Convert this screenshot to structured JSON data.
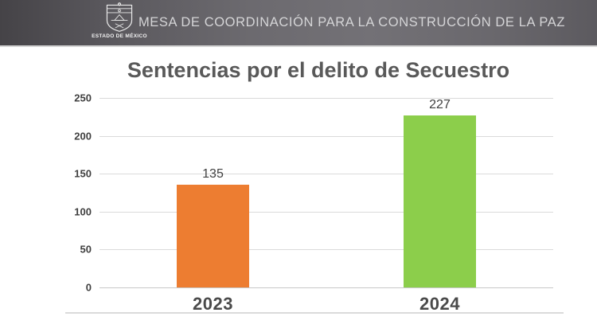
{
  "header": {
    "title": "MESA DE COORDINACIÓN PARA LA CONSTRUCCIÓN DE LA PAZ",
    "logo": {
      "icon": "estado-de-mexico-coat-of-arms",
      "caption": "ESTADO DE MÉXICO"
    }
  },
  "chart_data": {
    "type": "bar",
    "title": "Sentencias por el delito de Secuestro",
    "categories": [
      "2023",
      "2024"
    ],
    "values": [
      135,
      227
    ],
    "bar_colors": [
      "#ED7D31",
      "#8CCE4B"
    ],
    "ylim": [
      0,
      250
    ],
    "yticks": [
      0,
      50,
      100,
      150,
      200,
      250
    ],
    "grid": "horizontal",
    "legend": "none",
    "xlabel": "",
    "ylabel": ""
  }
}
